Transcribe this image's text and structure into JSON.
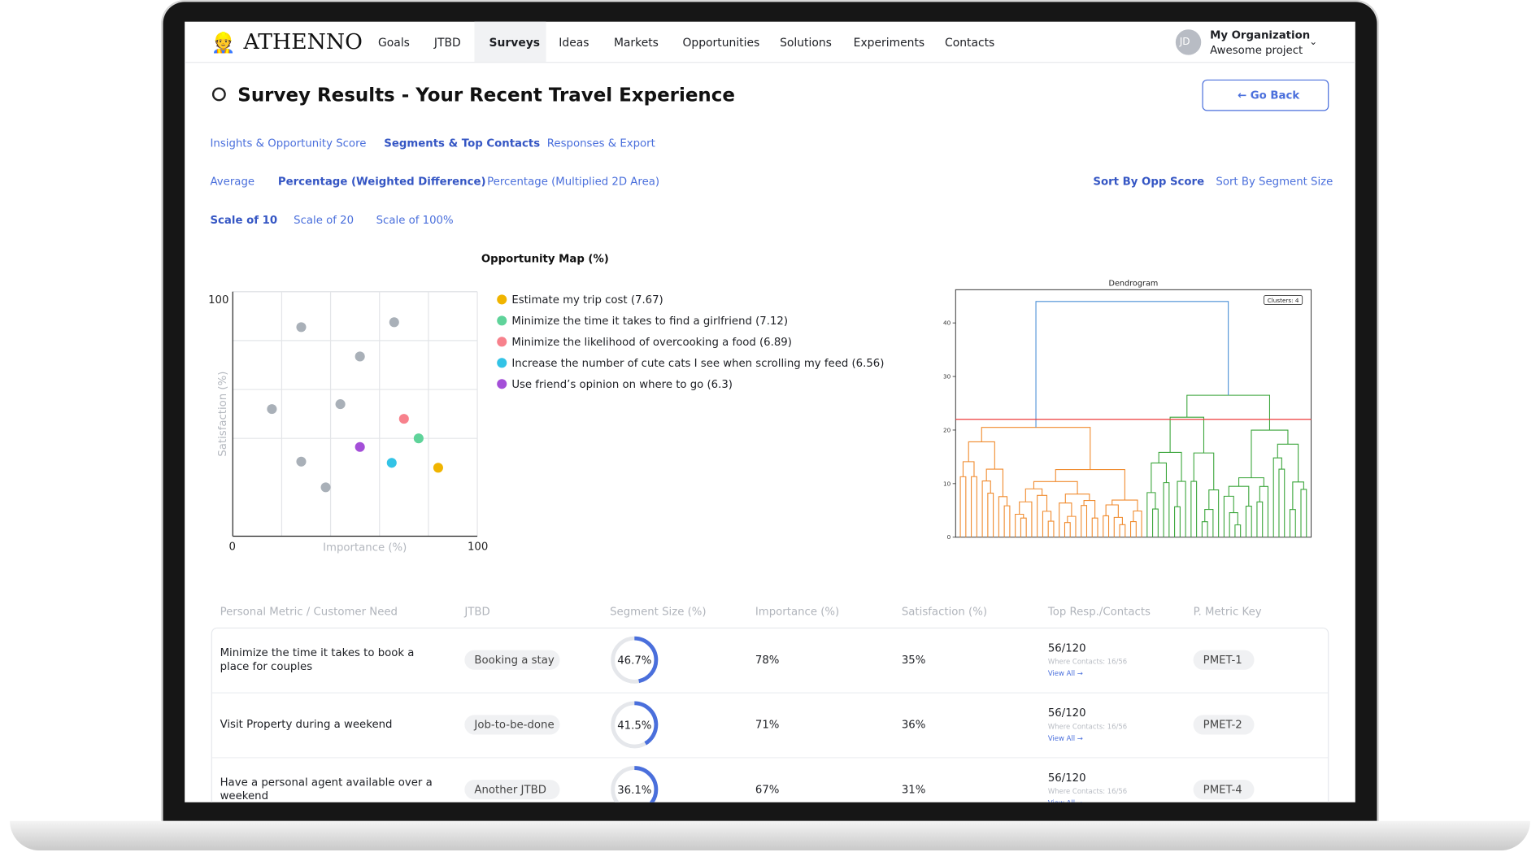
{
  "nav": {
    "logo": "ATHENNO",
    "items": [
      "Goals",
      "JTBD",
      "Surveys",
      "Ideas",
      "Markets",
      "Opportunities",
      "Solutions",
      "Experiments",
      "Contacts"
    ],
    "active": 2
  },
  "account": {
    "initials": "JD",
    "organization": "My Organization",
    "project": "Awesome project"
  },
  "header": {
    "title": "Survey Results - Your Recent Travel Experience",
    "back_button": "← Go Back"
  },
  "tabs": {
    "items": [
      "Insights & Opportunity Score",
      "Segments & Top Contacts",
      "Responses & Export"
    ],
    "active": 1
  },
  "metric_tabs": {
    "items": [
      "Average",
      "Percentage (Weighted Difference)",
      "Percentage (Multiplied 2D Area)"
    ],
    "active": 1
  },
  "sort_tabs": {
    "items": [
      "Sort By Opp Score",
      "Sort By Segment Size"
    ],
    "active": 0
  },
  "scale_tabs": {
    "items": [
      "Scale of 10",
      "Scale of 20",
      "Scale of 100%"
    ],
    "active": 0
  },
  "chart_data": [
    {
      "type": "scatter",
      "title": "Opportunity Map (%)",
      "x_label": "Importance (%)",
      "y_label": "Satisfaction (%)",
      "xlim": [
        0,
        100
      ],
      "ylim": [
        0,
        100
      ],
      "xticks": [
        0,
        100
      ],
      "yticks": [
        100
      ],
      "grid": true,
      "legend": "right",
      "series": [
        {
          "name": "Estimate my trip cost (7.67)",
          "color": "#f0b400",
          "x": [
            84
          ],
          "y": [
            28
          ]
        },
        {
          "name": "Minimize the time it takes to find a girlfriend (7.12)",
          "color": "#5fd39a",
          "x": [
            76
          ],
          "y": [
            40
          ]
        },
        {
          "name": "Minimize the likelihood of overcooking a food (6.89)",
          "color": "#f7818c",
          "x": [
            70
          ],
          "y": [
            48
          ]
        },
        {
          "name": "Increase the number of cute cats I see when scrolling my feed (6.56)",
          "color": "#33c3e6",
          "x": [
            65
          ],
          "y": [
            30
          ]
        },
        {
          "name": "Use friend’s opinion on where to go (6.3)",
          "color": "#a44fd8",
          "x": [
            52
          ],
          "y": [
            36.5
          ]
        },
        {
          "color": "#a9b0b8",
          "x": [
            28,
            66,
            52,
            16,
            44,
            28,
            38
          ],
          "y": [
            85.5,
            87.5,
            73.5,
            52,
            54,
            30.5,
            20
          ]
        }
      ]
    },
    {
      "type": "dendrogram",
      "title": "Dendrogram",
      "annotation": "Clusters: 4",
      "ylim": [
        0,
        46.2
      ],
      "yticks": [
        0,
        10,
        20,
        30,
        40
      ],
      "threshold": 22,
      "threshold_color": "#ee3b3b",
      "root_height": 44,
      "root_color": "#4a8fd6",
      "branch_heights": [
        20.5,
        26.5
      ],
      "branch_colors": [
        "#f08a2c",
        "#3aa53a"
      ],
      "leaf_count": 64
    }
  ],
  "table": {
    "columns": [
      "Personal Metric / Customer Need",
      "JTBD",
      "Segment Size (%)",
      "Importance (%)",
      "Satisfaction (%)",
      "Top Resp./Contacts",
      "P. Metric Key"
    ],
    "rows": [
      {
        "need": "Minimize the time it takes to book a place for couples",
        "jtbd": "Booking a stay",
        "segment_size": 46.7,
        "segment_size_label": "46.7%",
        "importance": "78%",
        "satisfaction": "35%",
        "top": "56/120",
        "where": "Where Contacts: 16/56",
        "view": "View All →",
        "key": "PMET-1"
      },
      {
        "need": "Visit Property during a weekend",
        "jtbd": "Job-to-be-done",
        "segment_size": 41.5,
        "segment_size_label": "41.5%",
        "importance": "71%",
        "satisfaction": "36%",
        "top": "56/120",
        "where": "Where Contacts: 16/56",
        "view": "View All →",
        "key": "PMET-2"
      },
      {
        "need": "Have a personal agent available over a weekend",
        "jtbd": "Another JTBD",
        "segment_size": 36.1,
        "segment_size_label": "36.1%",
        "importance": "67%",
        "satisfaction": "31%",
        "top": "56/120",
        "where": "Where Contacts: 16/56",
        "view": "View All →",
        "key": "PMET-4"
      }
    ]
  }
}
